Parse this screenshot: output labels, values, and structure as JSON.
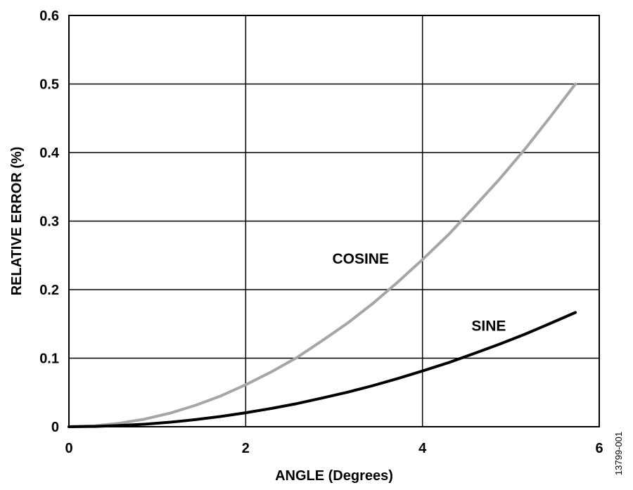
{
  "chart_data": {
    "type": "line",
    "title": "",
    "xlabel": "ANGLE (Degrees)",
    "ylabel": "RELATIVE ERROR (%)",
    "xlim": [
      0,
      6
    ],
    "ylim": [
      0,
      0.6
    ],
    "xticks": [
      0,
      2,
      4,
      6
    ],
    "xtick_labels": [
      "0",
      "2",
      "4",
      "6"
    ],
    "yticks": [
      0,
      0.1,
      0.2,
      0.3,
      0.4,
      0.5,
      0.6
    ],
    "ytick_labels": [
      "0",
      "0.1",
      "0.2",
      "0.3",
      "0.4",
      "0.5",
      "0.6"
    ],
    "grid": true,
    "series": [
      {
        "name": "COSINE",
        "color": "#a6a6a6",
        "x": [
          0,
          0.29,
          0.57,
          0.86,
          1.15,
          1.43,
          1.72,
          2.0,
          2.29,
          2.58,
          2.86,
          3.15,
          3.44,
          3.72,
          4.01,
          4.3,
          4.58,
          4.87,
          5.16,
          5.44,
          5.73
        ],
        "y": [
          0,
          0.0013,
          0.005,
          0.0112,
          0.02,
          0.0312,
          0.045,
          0.0612,
          0.08,
          0.101,
          0.125,
          0.151,
          0.18,
          0.211,
          0.245,
          0.281,
          0.32,
          0.361,
          0.405,
          0.451,
          0.5
        ]
      },
      {
        "name": "SINE",
        "color": "#000000",
        "x": [
          0,
          0.29,
          0.57,
          0.86,
          1.15,
          1.43,
          1.72,
          2.0,
          2.29,
          2.58,
          2.86,
          3.15,
          3.44,
          3.72,
          4.01,
          4.3,
          4.58,
          4.87,
          5.16,
          5.44,
          5.73
        ],
        "y": [
          0,
          0.0004,
          0.0017,
          0.0037,
          0.0067,
          0.0104,
          0.015,
          0.0204,
          0.0267,
          0.0337,
          0.0417,
          0.0504,
          0.06,
          0.0704,
          0.0817,
          0.0937,
          0.1067,
          0.1204,
          0.135,
          0.1504,
          0.1667
        ]
      }
    ],
    "annotations": [
      {
        "text": "COSINE",
        "x": 3.3,
        "y": 0.245
      },
      {
        "text": "SINE",
        "x": 4.75,
        "y": 0.147
      }
    ]
  },
  "figure_id": "13799-001"
}
